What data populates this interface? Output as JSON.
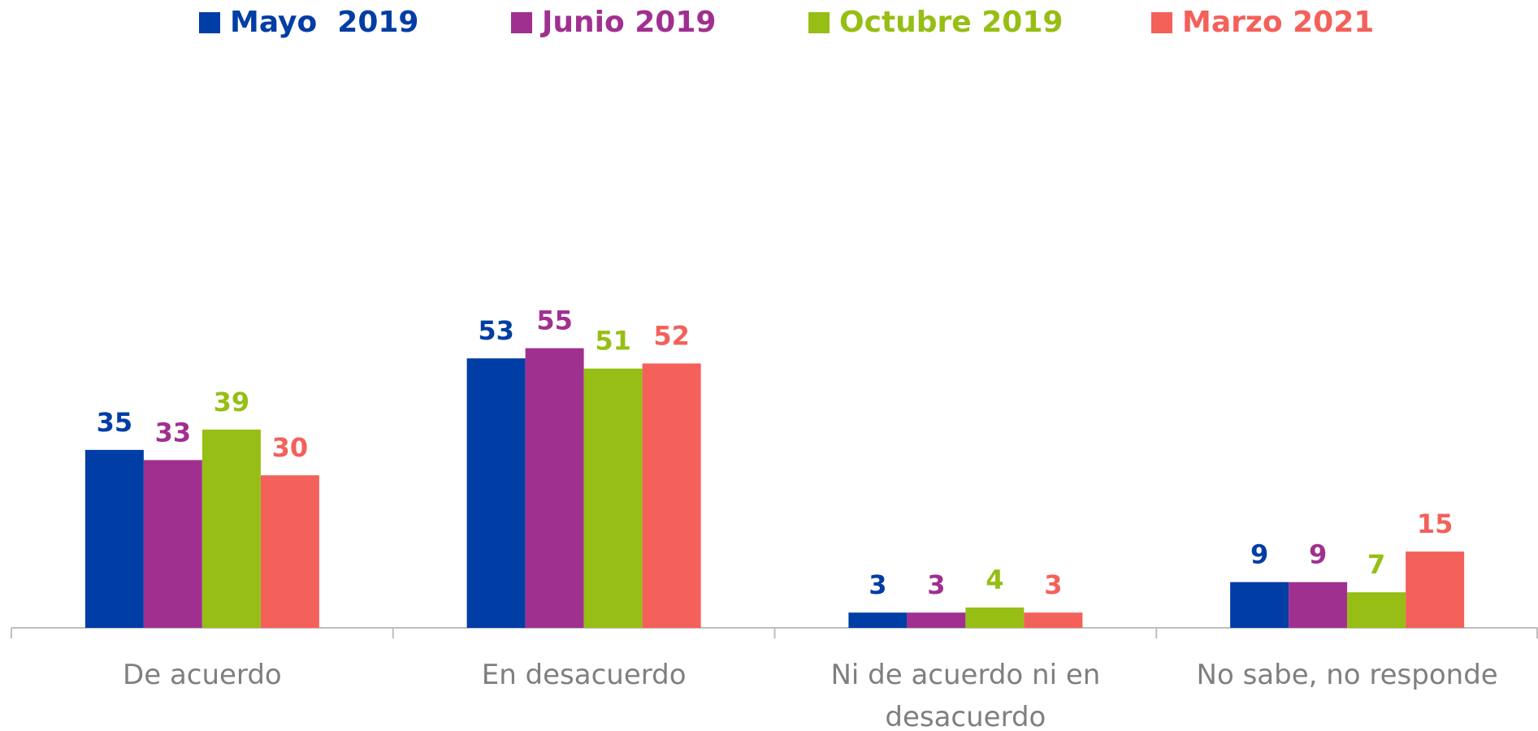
{
  "chart_data": {
    "type": "bar",
    "categories": [
      "De acuerdo",
      "En desacuerdo",
      "Ni de acuerdo ni en desacuerdo",
      "No sabe, no responde"
    ],
    "series": [
      {
        "name": "Mayo  2019",
        "color": "#003da5",
        "values": [
          35,
          53,
          3,
          9
        ]
      },
      {
        "name": "Junio 2019",
        "color": "#a03090",
        "values": [
          33,
          55,
          3,
          9
        ]
      },
      {
        "name": "Octubre 2019",
        "color": "#96be14",
        "values": [
          39,
          51,
          4,
          7
        ]
      },
      {
        "name": "Marzo 2021",
        "color": "#f4605a",
        "values": [
          30,
          52,
          3,
          15
        ]
      }
    ],
    "ylim": [
      0,
      100
    ],
    "legend": "top"
  }
}
